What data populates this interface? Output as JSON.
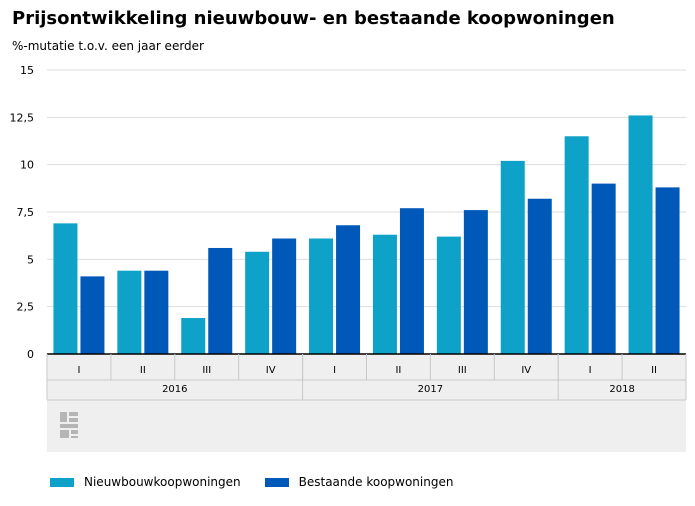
{
  "title": "Prijsontwikkeling nieuwbouw- en bestaande koopwoningen",
  "subtitle": "%-mutatie t.o.v. een jaar eerder",
  "colors": {
    "series1": "#0ea2c8",
    "series2": "#0058b8",
    "grid": "#dddddd",
    "axis": "#000000",
    "band": "#efefef",
    "logo": "#b5b5b5"
  },
  "logo_icon": "cbs-logo-icon",
  "chart_data": {
    "type": "bar",
    "title": "Prijsontwikkeling nieuwbouw- en bestaande koopwoningen",
    "ylabel": "%-mutatie t.o.v. een jaar eerder",
    "ylim": [
      0,
      15
    ],
    "yticks": [
      0,
      2.5,
      5,
      7.5,
      10,
      12.5,
      15
    ],
    "yticklabels": [
      "0",
      "2,5",
      "5",
      "7,5",
      "10",
      "12,5",
      "15"
    ],
    "grid": true,
    "legend": "bottom",
    "categories": [
      "I",
      "II",
      "III",
      "IV",
      "I",
      "II",
      "III",
      "IV",
      "I",
      "II"
    ],
    "groups": [
      {
        "label": "2016",
        "count": 4
      },
      {
        "label": "2017",
        "count": 4
      },
      {
        "label": "2018",
        "count": 2
      }
    ],
    "series": [
      {
        "name": "Nieuwbouwkoopwoningen",
        "values": [
          6.9,
          4.4,
          1.9,
          5.4,
          6.1,
          6.3,
          6.2,
          10.2,
          11.5,
          12.6
        ]
      },
      {
        "name": "Bestaande koopwoningen",
        "values": [
          4.1,
          4.4,
          5.6,
          6.1,
          6.8,
          7.7,
          7.6,
          8.2,
          9.0,
          8.8
        ]
      }
    ]
  }
}
